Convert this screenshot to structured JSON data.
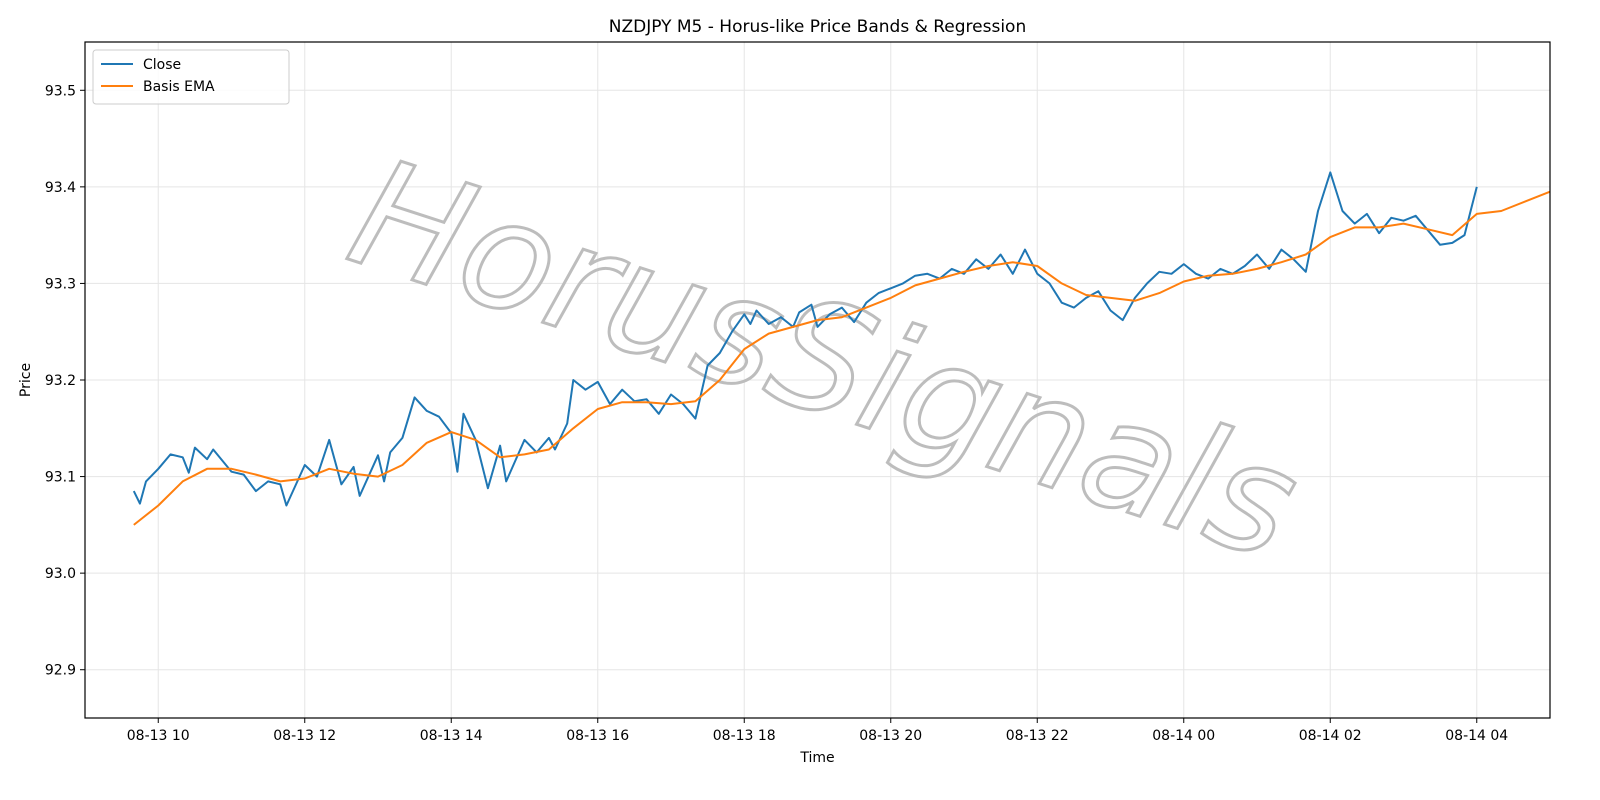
{
  "chart_data": {
    "type": "line",
    "title": "NZDJPY M5 - Horus-like Price Bands & Regression",
    "xlabel": "Time",
    "ylabel": "Price",
    "x_range": [
      "08-13 09:00",
      "08-14 05:00"
    ],
    "ylim": [
      92.85,
      93.55
    ],
    "x_ticks": [
      {
        "t": "08-13 10:00",
        "label": "08-13 10"
      },
      {
        "t": "08-13 12:00",
        "label": "08-13 12"
      },
      {
        "t": "08-13 14:00",
        "label": "08-13 14"
      },
      {
        "t": "08-13 16:00",
        "label": "08-13 16"
      },
      {
        "t": "08-13 18:00",
        "label": "08-13 18"
      },
      {
        "t": "08-13 20:00",
        "label": "08-13 20"
      },
      {
        "t": "08-13 22:00",
        "label": "08-13 22"
      },
      {
        "t": "08-14 00:00",
        "label": "08-14 00"
      },
      {
        "t": "08-14 02:00",
        "label": "08-14 02"
      },
      {
        "t": "08-14 04:00",
        "label": "08-14 04"
      }
    ],
    "y_ticks": [
      92.9,
      93.0,
      93.1,
      93.2,
      93.3,
      93.4,
      93.5
    ],
    "grid": true,
    "legend_position": "top-left",
    "watermark": "HorusSignals",
    "series": [
      {
        "name": "Close",
        "color": "#1f77b4",
        "points": [
          [
            "08-13 09:40",
            93.085
          ],
          [
            "08-13 09:45",
            93.072
          ],
          [
            "08-13 09:50",
            93.095
          ],
          [
            "08-13 10:00",
            93.108
          ],
          [
            "08-13 10:10",
            93.123
          ],
          [
            "08-13 10:20",
            93.12
          ],
          [
            "08-13 10:25",
            93.104
          ],
          [
            "08-13 10:30",
            93.13
          ],
          [
            "08-13 10:40",
            93.118
          ],
          [
            "08-13 10:45",
            93.128
          ],
          [
            "08-13 11:00",
            93.105
          ],
          [
            "08-13 11:10",
            93.102
          ],
          [
            "08-13 11:20",
            93.085
          ],
          [
            "08-13 11:30",
            93.095
          ],
          [
            "08-13 11:40",
            93.092
          ],
          [
            "08-13 11:45",
            93.07
          ],
          [
            "08-13 12:00",
            93.112
          ],
          [
            "08-13 12:10",
            93.1
          ],
          [
            "08-13 12:20",
            93.138
          ],
          [
            "08-13 12:30",
            93.092
          ],
          [
            "08-13 12:40",
            93.11
          ],
          [
            "08-13 12:45",
            93.08
          ],
          [
            "08-13 13:00",
            93.122
          ],
          [
            "08-13 13:05",
            93.095
          ],
          [
            "08-13 13:10",
            93.125
          ],
          [
            "08-13 13:20",
            93.14
          ],
          [
            "08-13 13:30",
            93.182
          ],
          [
            "08-13 13:40",
            93.168
          ],
          [
            "08-13 13:50",
            93.162
          ],
          [
            "08-13 14:00",
            93.145
          ],
          [
            "08-13 14:05",
            93.105
          ],
          [
            "08-13 14:10",
            93.165
          ],
          [
            "08-13 14:20",
            93.138
          ],
          [
            "08-13 14:30",
            93.088
          ],
          [
            "08-13 14:40",
            93.132
          ],
          [
            "08-13 14:45",
            93.095
          ],
          [
            "08-13 15:00",
            93.138
          ],
          [
            "08-13 15:10",
            93.125
          ],
          [
            "08-13 15:20",
            93.14
          ],
          [
            "08-13 15:25",
            93.128
          ],
          [
            "08-13 15:35",
            93.155
          ],
          [
            "08-13 15:40",
            93.2
          ],
          [
            "08-13 15:50",
            93.19
          ],
          [
            "08-13 16:00",
            93.198
          ],
          [
            "08-13 16:10",
            93.175
          ],
          [
            "08-13 16:20",
            93.19
          ],
          [
            "08-13 16:30",
            93.178
          ],
          [
            "08-13 16:40",
            93.18
          ],
          [
            "08-13 16:50",
            93.165
          ],
          [
            "08-13 17:00",
            93.185
          ],
          [
            "08-13 17:10",
            93.175
          ],
          [
            "08-13 17:20",
            93.16
          ],
          [
            "08-13 17:30",
            93.215
          ],
          [
            "08-13 17:40",
            93.228
          ],
          [
            "08-13 17:50",
            93.25
          ],
          [
            "08-13 18:00",
            93.268
          ],
          [
            "08-13 18:05",
            93.258
          ],
          [
            "08-13 18:10",
            93.272
          ],
          [
            "08-13 18:20",
            93.258
          ],
          [
            "08-13 18:30",
            93.265
          ],
          [
            "08-13 18:40",
            93.255
          ],
          [
            "08-13 18:45",
            93.27
          ],
          [
            "08-13 18:55",
            93.278
          ],
          [
            "08-13 19:00",
            93.255
          ],
          [
            "08-13 19:10",
            93.268
          ],
          [
            "08-13 19:20",
            93.275
          ],
          [
            "08-13 19:30",
            93.26
          ],
          [
            "08-13 19:40",
            93.28
          ],
          [
            "08-13 19:50",
            93.29
          ],
          [
            "08-13 20:00",
            93.295
          ],
          [
            "08-13 20:10",
            93.3
          ],
          [
            "08-13 20:20",
            93.308
          ],
          [
            "08-13 20:30",
            93.31
          ],
          [
            "08-13 20:40",
            93.305
          ],
          [
            "08-13 20:50",
            93.315
          ],
          [
            "08-13 21:00",
            93.31
          ],
          [
            "08-13 21:10",
            93.325
          ],
          [
            "08-13 21:20",
            93.315
          ],
          [
            "08-13 21:30",
            93.33
          ],
          [
            "08-13 21:40",
            93.31
          ],
          [
            "08-13 21:50",
            93.335
          ],
          [
            "08-13 22:00",
            93.31
          ],
          [
            "08-13 22:10",
            93.3
          ],
          [
            "08-13 22:20",
            93.28
          ],
          [
            "08-13 22:30",
            93.275
          ],
          [
            "08-13 22:40",
            93.285
          ],
          [
            "08-13 22:50",
            93.292
          ],
          [
            "08-13 23:00",
            93.272
          ],
          [
            "08-13 23:10",
            93.262
          ],
          [
            "08-13 23:20",
            93.285
          ],
          [
            "08-13 23:30",
            93.3
          ],
          [
            "08-13 23:40",
            93.312
          ],
          [
            "08-13 23:50",
            93.31
          ],
          [
            "08-14 00:00",
            93.32
          ],
          [
            "08-14 00:10",
            93.31
          ],
          [
            "08-14 00:20",
            93.305
          ],
          [
            "08-14 00:30",
            93.315
          ],
          [
            "08-14 00:40",
            93.31
          ],
          [
            "08-14 00:50",
            93.318
          ],
          [
            "08-14 01:00",
            93.33
          ],
          [
            "08-14 01:10",
            93.315
          ],
          [
            "08-14 01:20",
            93.335
          ],
          [
            "08-14 01:30",
            93.325
          ],
          [
            "08-14 01:40",
            93.312
          ],
          [
            "08-14 01:50",
            93.375
          ],
          [
            "08-14 02:00",
            93.415
          ],
          [
            "08-14 02:10",
            93.375
          ],
          [
            "08-14 02:20",
            93.362
          ],
          [
            "08-14 02:30",
            93.372
          ],
          [
            "08-14 02:40",
            93.352
          ],
          [
            "08-14 02:50",
            93.368
          ],
          [
            "08-14 03:00",
            93.365
          ],
          [
            "08-14 03:10",
            93.37
          ],
          [
            "08-14 03:20",
            93.355
          ],
          [
            "08-14 03:30",
            93.34
          ],
          [
            "08-14 03:40",
            93.342
          ],
          [
            "08-14 03:50",
            93.35
          ],
          [
            "08-14 03:55",
            93.375
          ],
          [
            "08-14 04:00",
            93.4
          ],
          [
            "08-14 04:00",
            93.4
          ]
        ]
      }
    ]
  }
}
